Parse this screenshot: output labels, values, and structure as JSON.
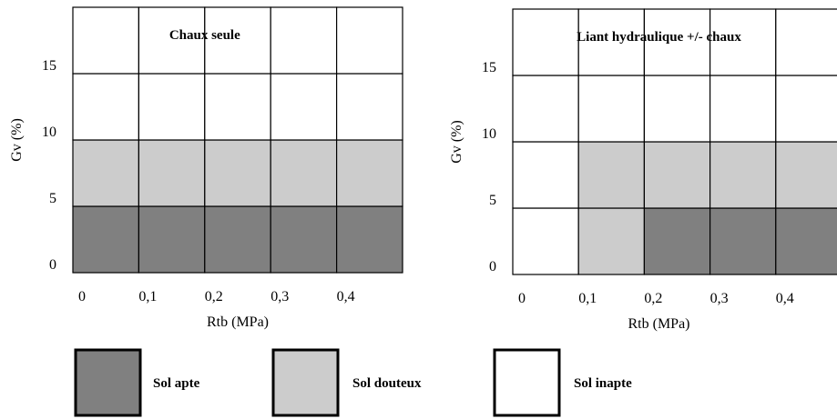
{
  "colors": {
    "apte": "#808080",
    "douteux": "#cccccc",
    "inapte": "#ffffff",
    "grid": "#000000"
  },
  "chart_data": [
    {
      "type": "heatmap",
      "title": "Chaux seule",
      "xlabel": "Rtb (MPa)",
      "ylabel": "Gv (%)",
      "x_ticks": [
        "0",
        "0,1",
        "0,2",
        "0,3",
        "0,4"
      ],
      "y_ticks": [
        "0",
        "5",
        "10",
        "15"
      ],
      "x_edges": [
        0,
        0.1,
        0.2,
        0.3,
        0.4,
        0.5
      ],
      "y_edges": [
        0,
        5,
        10,
        15,
        20
      ],
      "xlim": [
        0,
        0.5
      ],
      "ylim": [
        0,
        20
      ],
      "grid": true,
      "cells": [
        [
          "apte",
          "apte",
          "apte",
          "apte",
          "apte"
        ],
        [
          "douteux",
          "douteux",
          "douteux",
          "douteux",
          "douteux"
        ],
        [
          "inapte",
          "inapte",
          "inapte",
          "inapte",
          "inapte"
        ],
        [
          "inapte",
          "inapte",
          "inapte",
          "inapte",
          "inapte"
        ]
      ]
    },
    {
      "type": "heatmap",
      "title": "Liant hydraulique +/- chaux",
      "xlabel": "Rtb (MPa)",
      "ylabel": "Gv (%)",
      "x_ticks": [
        "0",
        "0,1",
        "0,2",
        "0,3",
        "0,4"
      ],
      "y_ticks": [
        "0",
        "5",
        "10",
        "15"
      ],
      "x_edges": [
        0,
        0.1,
        0.2,
        0.3,
        0.4,
        0.5
      ],
      "y_edges": [
        0,
        5,
        10,
        15,
        20
      ],
      "xlim": [
        0,
        0.5
      ],
      "ylim": [
        0,
        20
      ],
      "grid": true,
      "cells": [
        [
          "inapte",
          "douteux",
          "apte",
          "apte",
          "apte"
        ],
        [
          "inapte",
          "douteux",
          "douteux",
          "douteux",
          "douteux"
        ],
        [
          "inapte",
          "inapte",
          "inapte",
          "inapte",
          "inapte"
        ],
        [
          "inapte",
          "inapte",
          "inapte",
          "inapte",
          "inapte"
        ]
      ]
    }
  ],
  "legend": [
    {
      "key": "apte",
      "label": "Sol apte"
    },
    {
      "key": "douteux",
      "label": "Sol douteux"
    },
    {
      "key": "inapte",
      "label": "Sol inapte"
    }
  ]
}
